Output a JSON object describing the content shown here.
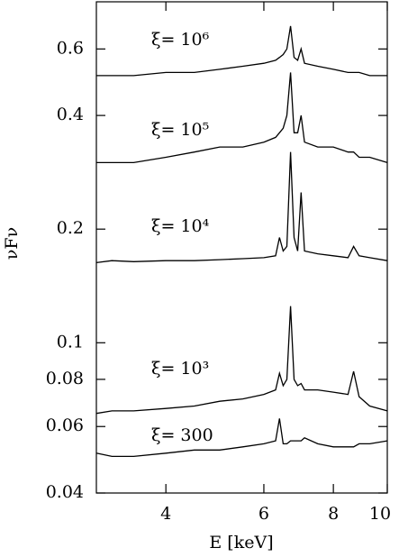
{
  "chart_data": {
    "type": "line",
    "x_label": "E [keV]",
    "y_label": "νFν",
    "log_x": true,
    "log_y": true,
    "xlim": [
      3,
      10
    ],
    "xticks": [
      4,
      6,
      8,
      10
    ],
    "ylim": [
      0.04,
      0.8
    ],
    "yticks": [
      0.04,
      0.06,
      0.08,
      0.1,
      0.2,
      0.4,
      0.6
    ],
    "x": [
      3,
      3.2,
      3.5,
      4,
      4.5,
      5,
      5.5,
      6,
      6.3,
      6.4,
      6.5,
      6.6,
      6.7,
      6.8,
      6.9,
      7.0,
      7.1,
      7.5,
      8,
      8.5,
      8.7,
      8.9,
      9.3,
      10
    ],
    "series": [
      {
        "name": "ξ= 10⁶",
        "color": "#000000",
        "values": [
          0.51,
          0.51,
          0.51,
          0.52,
          0.52,
          0.53,
          0.54,
          0.55,
          0.56,
          0.57,
          0.58,
          0.6,
          0.69,
          0.57,
          0.56,
          0.6,
          0.55,
          0.54,
          0.53,
          0.52,
          0.52,
          0.52,
          0.51,
          0.51
        ]
      },
      {
        "name": "ξ= 10⁵",
        "color": "#000000",
        "values": [
          0.3,
          0.3,
          0.3,
          0.31,
          0.32,
          0.33,
          0.33,
          0.34,
          0.35,
          0.36,
          0.37,
          0.4,
          0.52,
          0.36,
          0.36,
          0.4,
          0.34,
          0.33,
          0.33,
          0.32,
          0.32,
          0.31,
          0.31,
          0.3
        ]
      },
      {
        "name": "ξ= 10⁴",
        "color": "#000000",
        "values": [
          0.163,
          0.165,
          0.164,
          0.165,
          0.165,
          0.166,
          0.167,
          0.168,
          0.17,
          0.19,
          0.175,
          0.18,
          0.32,
          0.19,
          0.175,
          0.25,
          0.175,
          0.172,
          0.17,
          0.168,
          0.18,
          0.17,
          0.168,
          0.165
        ]
      },
      {
        "name": "ξ= 10³",
        "color": "#000000",
        "values": [
          0.065,
          0.066,
          0.066,
          0.067,
          0.068,
          0.07,
          0.071,
          0.073,
          0.075,
          0.083,
          0.077,
          0.08,
          0.125,
          0.08,
          0.077,
          0.078,
          0.075,
          0.075,
          0.074,
          0.073,
          0.084,
          0.072,
          0.068,
          0.066
        ]
      },
      {
        "name": "ξ= 300",
        "color": "#000000",
        "values": [
          0.051,
          0.05,
          0.05,
          0.051,
          0.052,
          0.052,
          0.053,
          0.054,
          0.055,
          0.063,
          0.054,
          0.054,
          0.055,
          0.055,
          0.055,
          0.055,
          0.056,
          0.054,
          0.053,
          0.053,
          0.053,
          0.054,
          0.054,
          0.055
        ]
      }
    ]
  }
}
